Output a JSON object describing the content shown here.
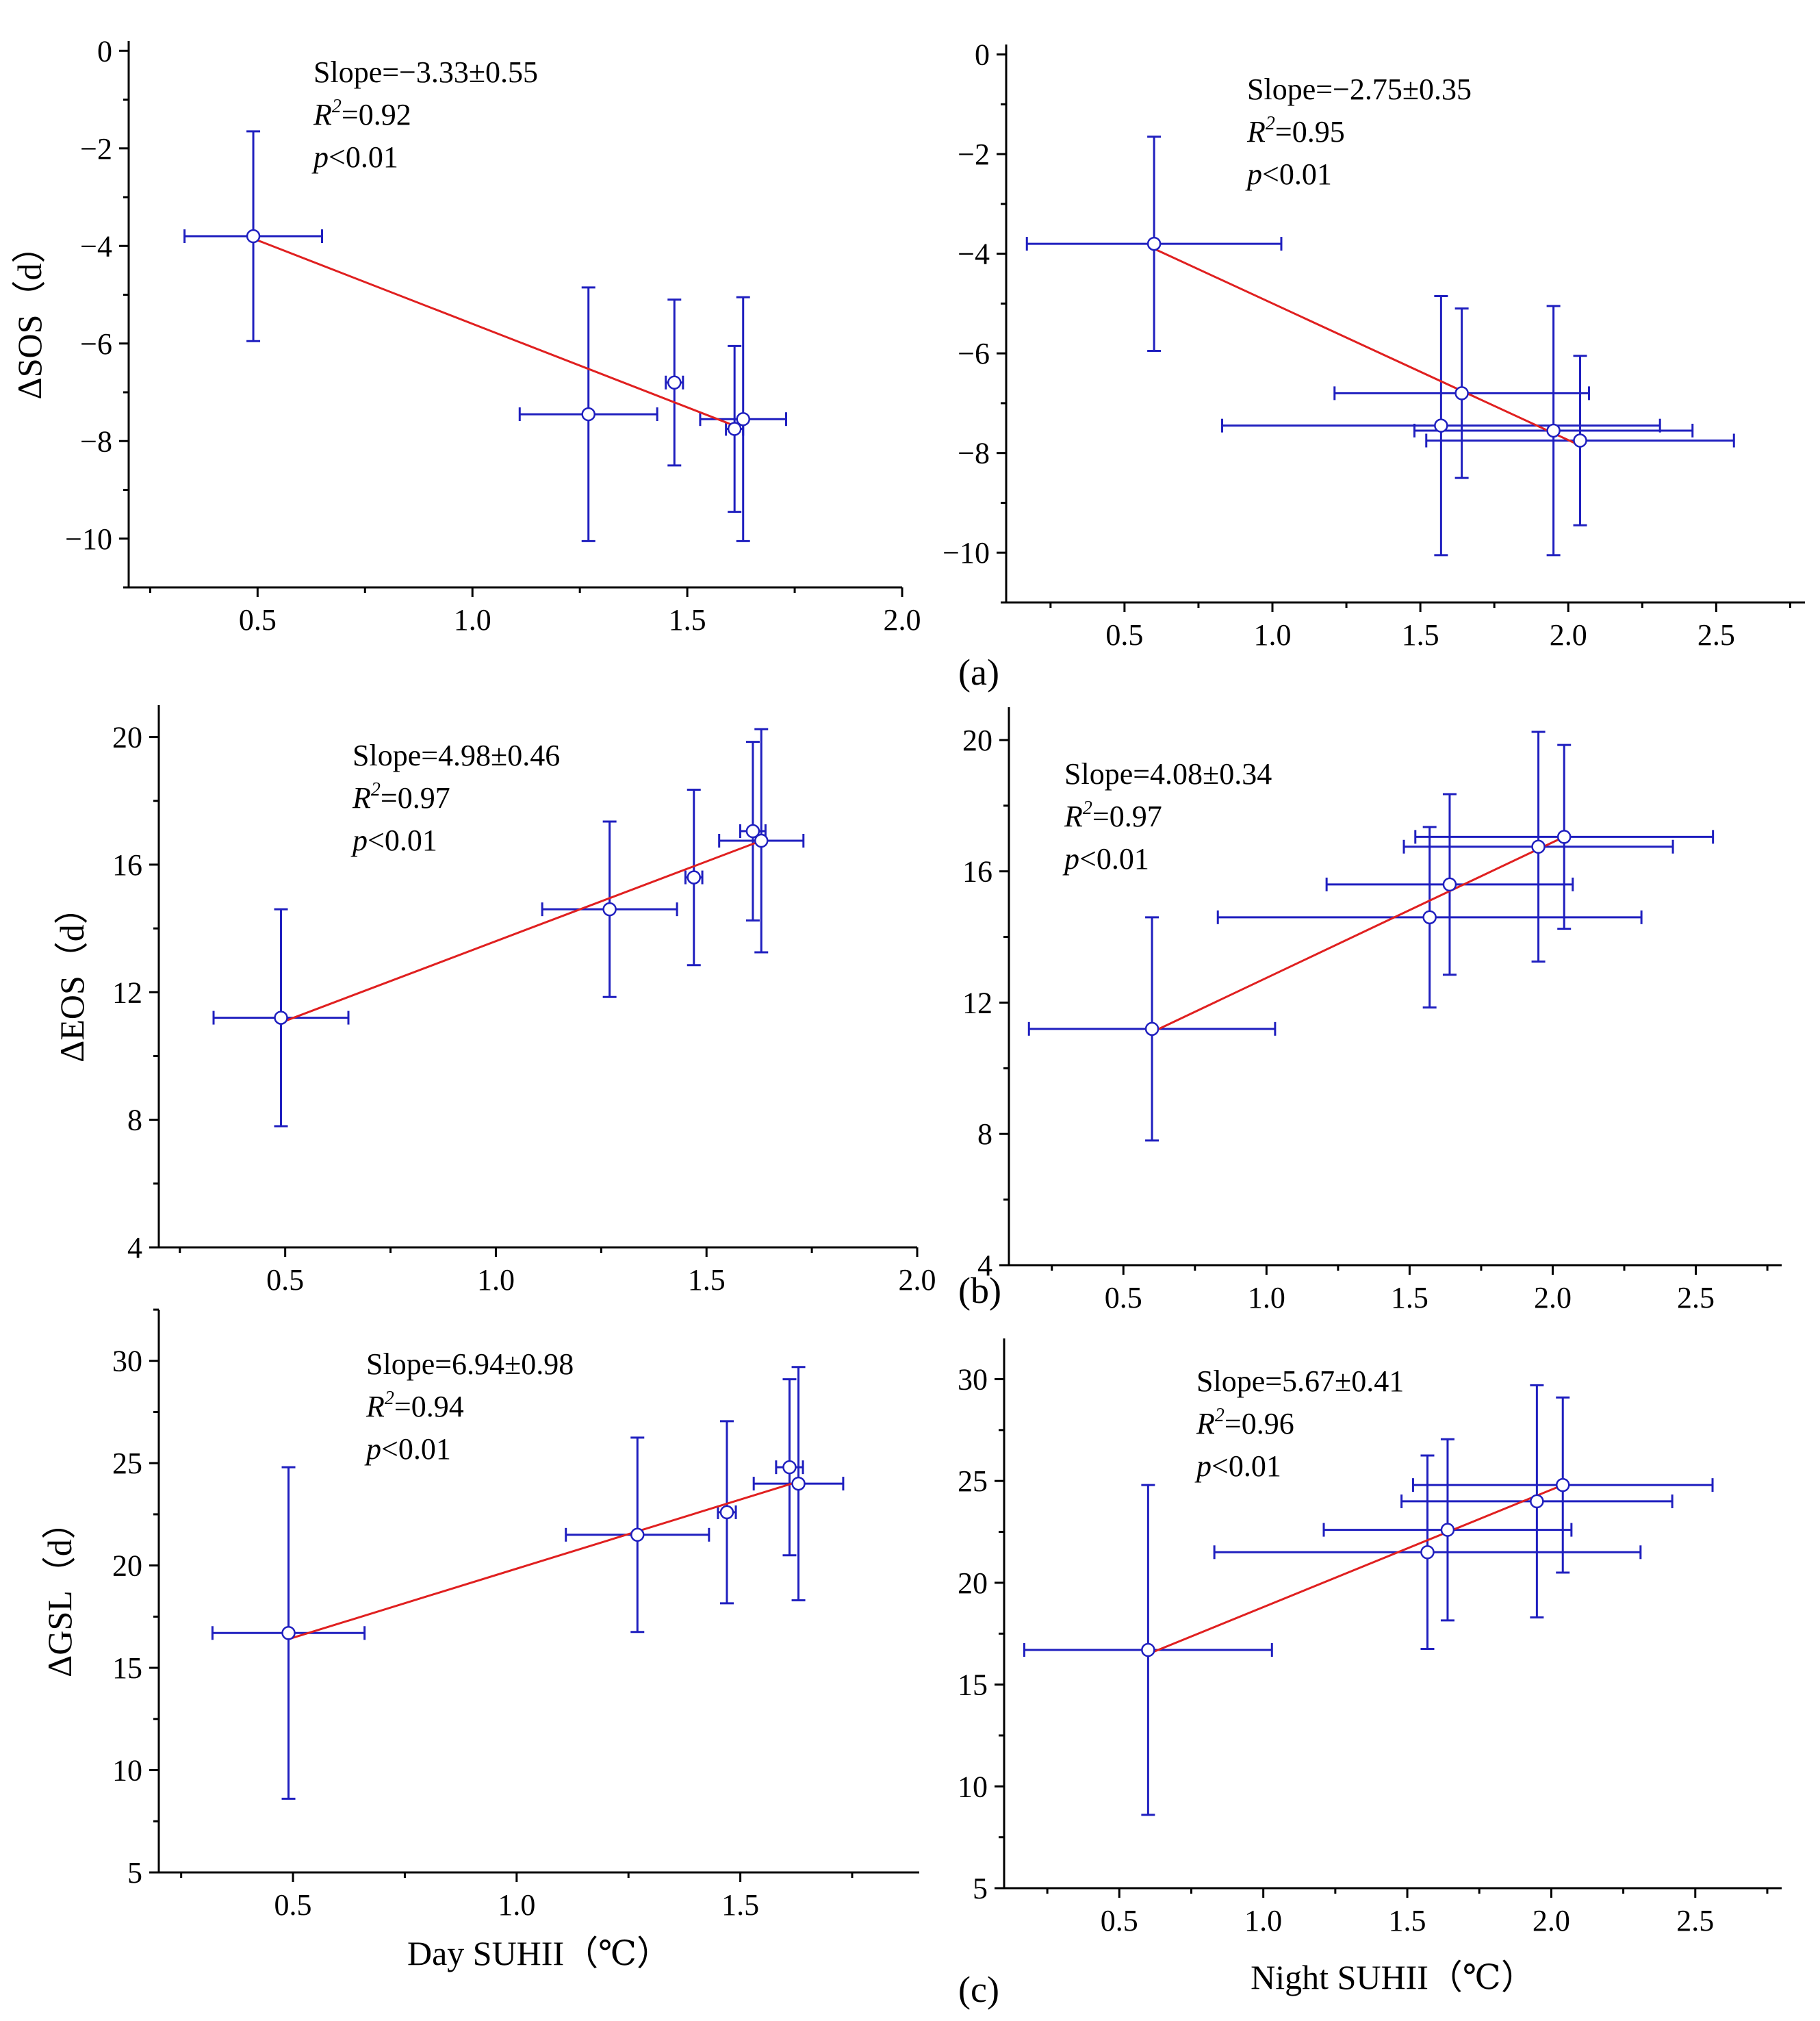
{
  "figure": {
    "panel_labels": [
      "(a)",
      "(b)",
      "(c)"
    ],
    "colors": {
      "error_bar": "#1f1fbf",
      "fit_line": "#e02020",
      "marker_edge": "#1f1fbf",
      "marker_fill": "#ffffff",
      "axis": "#000000"
    }
  },
  "chart_data": [
    {
      "id": "sos_day",
      "type": "scatter",
      "ylabel": "ΔSOS（d）",
      "xlabel": "",
      "xlim": [
        0.2,
        2.0
      ],
      "ylim": [
        -11,
        0.2
      ],
      "xticks": [
        0.5,
        1.0,
        1.5,
        2.0
      ],
      "xtick_labels": [
        "0.5",
        "1.0",
        "1.5",
        "2.0"
      ],
      "yticks": [
        0,
        -2,
        -4,
        -6,
        -8,
        -10
      ],
      "ytick_labels": [
        "0",
        "−2",
        "−4",
        "−6",
        "−8",
        "−10"
      ],
      "points": [
        {
          "x": 0.49,
          "y": -3.8,
          "xerr": 0.16,
          "yerr": 2.15
        },
        {
          "x": 1.27,
          "y": -7.45,
          "xerr": 0.16,
          "yerr": 2.6
        },
        {
          "x": 1.47,
          "y": -6.8,
          "xerr": 0.02,
          "yerr": 1.7
        },
        {
          "x": 1.61,
          "y": -7.75,
          "xerr": 0.02,
          "yerr": 1.7
        },
        {
          "x": 1.63,
          "y": -7.55,
          "xerr": 0.1,
          "yerr": 2.5
        }
      ],
      "fit": {
        "x": [
          0.49,
          1.62
        ],
        "y": [
          -3.85,
          -7.72
        ]
      },
      "stats": {
        "slope": "Slope=−3.33±0.55",
        "r2_prefix": "R",
        "r2_exp": "2",
        "r2_value": "=0.92",
        "p_prefix": "p",
        "p_value": "<0.01"
      }
    },
    {
      "id": "sos_night",
      "type": "scatter",
      "ylabel": "",
      "xlabel": "",
      "xlim": [
        0.1,
        2.8
      ],
      "ylim": [
        -11,
        0.2
      ],
      "xticks": [
        0.5,
        1.0,
        1.5,
        2.0,
        2.5
      ],
      "xtick_labels": [
        "0.5",
        "1.0",
        "1.5",
        "2.0",
        "2.5"
      ],
      "yticks": [
        0,
        -2,
        -4,
        -6,
        -8,
        -10
      ],
      "ytick_labels": [
        "0",
        "−2",
        "−4",
        "−6",
        "−8",
        "−10"
      ],
      "points": [
        {
          "x": 0.6,
          "y": -3.8,
          "xerr": 0.43,
          "yerr": 2.15
        },
        {
          "x": 1.57,
          "y": -7.45,
          "xerr": 0.74,
          "yerr": 2.6
        },
        {
          "x": 1.64,
          "y": -6.8,
          "xerr": 0.43,
          "yerr": 1.7
        },
        {
          "x": 1.95,
          "y": -7.55,
          "xerr": 0.47,
          "yerr": 2.5
        },
        {
          "x": 2.04,
          "y": -7.75,
          "xerr": 0.52,
          "yerr": 1.7
        }
      ],
      "fit": {
        "x": [
          0.6,
          2.04
        ],
        "y": [
          -3.9,
          -7.85
        ]
      },
      "stats": {
        "slope": "Slope=−2.75±0.35",
        "r2_prefix": "R",
        "r2_exp": "2",
        "r2_value": "=0.95",
        "p_prefix": "p",
        "p_value": "<0.01"
      }
    },
    {
      "id": "eos_day",
      "type": "scatter",
      "ylabel": "ΔEOS（d）",
      "xlabel": "",
      "xlim": [
        0.2,
        2.0
      ],
      "ylim": [
        4,
        21
      ],
      "xticks": [
        0.5,
        1.0,
        1.5,
        2.0
      ],
      "xtick_labels": [
        "0.5",
        "1.0",
        "1.5",
        "2.0"
      ],
      "yticks": [
        4,
        8,
        12,
        16,
        20
      ],
      "ytick_labels": [
        "4",
        "8",
        "12",
        "16",
        "20"
      ],
      "points": [
        {
          "x": 0.49,
          "y": 11.2,
          "xerr": 0.16,
          "yerr": 3.4
        },
        {
          "x": 1.27,
          "y": 14.6,
          "xerr": 0.16,
          "yerr": 2.75
        },
        {
          "x": 1.47,
          "y": 15.6,
          "xerr": 0.02,
          "yerr": 2.75
        },
        {
          "x": 1.61,
          "y": 17.05,
          "xerr": 0.03,
          "yerr": 2.8
        },
        {
          "x": 1.63,
          "y": 16.75,
          "xerr": 0.1,
          "yerr": 3.5
        }
      ],
      "fit": {
        "x": [
          0.49,
          1.63
        ],
        "y": [
          11.05,
          16.75
        ]
      },
      "stats": {
        "slope": "Slope=4.98±0.46",
        "r2_prefix": "R",
        "r2_exp": "2",
        "r2_value": "=0.97",
        "p_prefix": "p",
        "p_value": "<0.01"
      }
    },
    {
      "id": "eos_night",
      "type": "scatter",
      "ylabel": "",
      "xlabel": "",
      "xlim": [
        0.1,
        2.8
      ],
      "ylim": [
        4,
        21
      ],
      "xticks": [
        0.5,
        1.0,
        1.5,
        2.0,
        2.5
      ],
      "xtick_labels": [
        "0.5",
        "1.0",
        "1.5",
        "2.0",
        "2.5"
      ],
      "yticks": [
        4,
        8,
        12,
        16,
        20
      ],
      "ytick_labels": [
        "4",
        "8",
        "12",
        "16",
        "20"
      ],
      "points": [
        {
          "x": 0.6,
          "y": 11.2,
          "xerr": 0.43,
          "yerr": 3.4
        },
        {
          "x": 1.57,
          "y": 14.6,
          "xerr": 0.74,
          "yerr": 2.75
        },
        {
          "x": 1.64,
          "y": 15.6,
          "xerr": 0.43,
          "yerr": 2.75
        },
        {
          "x": 1.95,
          "y": 16.75,
          "xerr": 0.47,
          "yerr": 3.5
        },
        {
          "x": 2.04,
          "y": 17.05,
          "xerr": 0.52,
          "yerr": 2.8
        }
      ],
      "fit": {
        "x": [
          0.6,
          2.04
        ],
        "y": [
          11.1,
          17.05
        ]
      },
      "stats": {
        "slope": "Slope=4.08±0.34",
        "r2_prefix": "R",
        "r2_exp": "2",
        "r2_value": "=0.97",
        "p_prefix": "p",
        "p_value": "<0.01"
      }
    },
    {
      "id": "gsl_day",
      "type": "scatter",
      "ylabel": "ΔGSL（d）",
      "xlabel": "Day SUHII（℃）",
      "xlim": [
        0.2,
        1.9
      ],
      "ylim": [
        5,
        32.5
      ],
      "xticks": [
        0.5,
        1.0,
        1.5
      ],
      "xtick_labels": [
        "0.5",
        "1.0",
        "1.5"
      ],
      "yticks": [
        5,
        10,
        15,
        20,
        25,
        30
      ],
      "ytick_labels": [
        "5",
        "10",
        "15",
        "20",
        "25",
        "30"
      ],
      "points": [
        {
          "x": 0.49,
          "y": 16.7,
          "xerr": 0.17,
          "yerr": 8.1
        },
        {
          "x": 1.27,
          "y": 21.5,
          "xerr": 0.16,
          "yerr": 4.75
        },
        {
          "x": 1.47,
          "y": 22.6,
          "xerr": 0.02,
          "yerr": 4.45
        },
        {
          "x": 1.61,
          "y": 24.8,
          "xerr": 0.03,
          "yerr": 4.3
        },
        {
          "x": 1.63,
          "y": 24.0,
          "xerr": 0.1,
          "yerr": 5.7
        }
      ],
      "fit": {
        "x": [
          0.49,
          1.63
        ],
        "y": [
          16.4,
          24.1
        ]
      },
      "stats": {
        "slope": "Slope=6.94±0.98",
        "r2_prefix": "R",
        "r2_exp": "2",
        "r2_value": "=0.94",
        "p_prefix": "p",
        "p_value": "<0.01"
      }
    },
    {
      "id": "gsl_night",
      "type": "scatter",
      "ylabel": "",
      "xlabel": "Night SUHII（℃）",
      "xlim": [
        0.1,
        2.8
      ],
      "ylim": [
        5,
        32
      ],
      "xticks": [
        0.5,
        1.0,
        1.5,
        2.0,
        2.5
      ],
      "xtick_labels": [
        "0.5",
        "1.0",
        "1.5",
        "2.0",
        "2.5"
      ],
      "yticks": [
        5,
        10,
        15,
        20,
        25,
        30
      ],
      "ytick_labels": [
        "5",
        "10",
        "15",
        "20",
        "25",
        "30"
      ],
      "points": [
        {
          "x": 0.6,
          "y": 16.7,
          "xerr": 0.43,
          "yerr": 8.1
        },
        {
          "x": 1.57,
          "y": 21.5,
          "xerr": 0.74,
          "yerr": 4.75
        },
        {
          "x": 1.64,
          "y": 22.6,
          "xerr": 0.43,
          "yerr": 4.45
        },
        {
          "x": 1.95,
          "y": 24.0,
          "xerr": 0.47,
          "yerr": 5.7
        },
        {
          "x": 2.04,
          "y": 24.8,
          "xerr": 0.52,
          "yerr": 4.3
        }
      ],
      "fit": {
        "x": [
          0.6,
          2.04
        ],
        "y": [
          16.5,
          24.8
        ]
      },
      "stats": {
        "slope": "Slope=5.67±0.41",
        "r2_prefix": "R",
        "r2_exp": "2",
        "r2_value": "=0.96",
        "p_prefix": "p",
        "p_value": "<0.01"
      }
    }
  ]
}
